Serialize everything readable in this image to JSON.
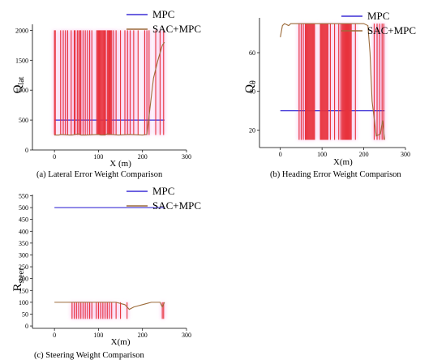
{
  "colors": {
    "mpc": "#3b2fd6",
    "sac": "#9c6b3a",
    "spike": "#e8323c",
    "halo": "#f7c3ec"
  },
  "chart_data": [
    {
      "type": "line",
      "ylabel_main": "Q",
      "ylabel_sub": "lat",
      "xlabel": "X (m)",
      "caption": "(a) Lateral Error Weight Comparison",
      "xlim": [
        -50,
        300
      ],
      "ylim": [
        0,
        2100
      ],
      "xticks": [
        "0",
        "100",
        "200",
        "300"
      ],
      "yticks": [
        "0",
        "500",
        "1000",
        "1500",
        "2000"
      ],
      "xtickvals": [
        0,
        100,
        200,
        300
      ],
      "ytickvals": [
        0,
        500,
        1000,
        1500,
        2000
      ],
      "legend": [
        "MPC",
        "SAC+MPC"
      ],
      "series": [
        {
          "name": "MPC",
          "x": [
            0,
            250
          ],
          "y": [
            500,
            500
          ]
        },
        {
          "name": "SAC+MPC",
          "x": [
            0,
            10,
            15,
            35,
            40,
            55,
            60,
            70,
            100,
            105,
            115,
            120,
            130,
            145,
            170,
            200,
            210,
            225,
            235,
            245,
            250
          ],
          "y": [
            250,
            250,
            260,
            250,
            250,
            270,
            250,
            250,
            260,
            250,
            250,
            270,
            260,
            250,
            260,
            250,
            260,
            1200,
            1500,
            1750,
            1800
          ]
        }
      ],
      "spike_x": [
        0,
        2,
        14,
        20,
        25,
        30,
        38,
        45,
        47,
        52,
        55,
        58,
        60,
        65,
        70,
        75,
        80,
        85,
        96,
        98,
        100,
        102,
        104,
        106,
        108,
        110,
        112,
        114,
        116,
        120,
        122,
        124,
        126,
        128,
        130,
        134,
        140,
        150,
        160,
        166,
        172,
        180,
        190,
        205,
        210,
        215,
        230,
        240,
        248
      ],
      "spike_lo": 250,
      "spike_hi": 2000
    },
    {
      "type": "line",
      "ylabel_main": "Q",
      "ylabel_sub": "θ",
      "xlabel": "X(m)",
      "caption": "(b) Heading Error Weight Comparison",
      "xlim": [
        -50,
        300
      ],
      "ylim": [
        11,
        78
      ],
      "xticks": [
        "0",
        "100",
        "200",
        "300"
      ],
      "yticks": [
        "20",
        "40",
        "60"
      ],
      "xtickvals": [
        0,
        100,
        200,
        300
      ],
      "ytickvals": [
        20,
        40,
        60
      ],
      "legend": [
        "MPC",
        "SAC+MPC"
      ],
      "series": [
        {
          "name": "MPC",
          "x": [
            0,
            250
          ],
          "y": [
            30,
            30
          ]
        },
        {
          "name": "SAC+MPC",
          "x": [
            0,
            5,
            10,
            20,
            25,
            40,
            60,
            80,
            100,
            120,
            140,
            160,
            180,
            200,
            210,
            215,
            220,
            230,
            240,
            245,
            250
          ],
          "y": [
            68,
            74,
            75,
            74,
            75,
            75,
            75,
            75,
            75,
            75,
            75,
            75,
            75,
            75,
            74,
            60,
            35,
            17,
            18,
            25,
            15
          ]
        }
      ],
      "spike_x": [
        45,
        50,
        55,
        60,
        62,
        64,
        66,
        68,
        70,
        72,
        74,
        76,
        78,
        80,
        82,
        96,
        98,
        100,
        102,
        104,
        106,
        108,
        110,
        112,
        114,
        120,
        130,
        140,
        145,
        148,
        150,
        152,
        154,
        156,
        158,
        160,
        162,
        164,
        166,
        168,
        170,
        180,
        225,
        232,
        238,
        244,
        248
      ],
      "spike_lo": 15,
      "spike_hi": 75
    },
    {
      "type": "line",
      "ylabel_main": "R",
      "ylabel_sub": "steer",
      "xlabel": "X(m)",
      "caption": "(c) Steering Weight Comparison",
      "xlim": [
        -50,
        300
      ],
      "ylim": [
        -10,
        555
      ],
      "xticks": [
        "0",
        "100",
        "200",
        "300"
      ],
      "yticks": [
        "0",
        "50",
        "100",
        "150",
        "200",
        "250",
        "300",
        "350",
        "400",
        "450",
        "500",
        "550"
      ],
      "xtickvals": [
        0,
        100,
        200,
        300
      ],
      "ytickvals": [
        0,
        50,
        100,
        150,
        200,
        250,
        300,
        350,
        400,
        450,
        500,
        550
      ],
      "legend": [
        "MPC",
        "SAC+MPC"
      ],
      "series": [
        {
          "name": "MPC",
          "x": [
            0,
            250
          ],
          "y": [
            500,
            500
          ]
        },
        {
          "name": "SAC+MPC",
          "x": [
            0,
            20,
            40,
            60,
            80,
            100,
            120,
            140,
            160,
            170,
            180,
            190,
            200,
            210,
            220,
            230,
            240,
            245,
            250
          ],
          "y": [
            100,
            100,
            100,
            100,
            100,
            100,
            100,
            100,
            90,
            70,
            80,
            85,
            90,
            95,
            100,
            100,
            100,
            80,
            100
          ]
        }
      ],
      "spike_x": [
        40,
        45,
        50,
        55,
        60,
        65,
        70,
        75,
        80,
        85,
        95,
        100,
        105,
        110,
        115,
        120,
        125,
        130,
        140,
        150,
        165,
        245,
        248
      ],
      "spike_lo": 30,
      "spike_hi": 100
    }
  ]
}
